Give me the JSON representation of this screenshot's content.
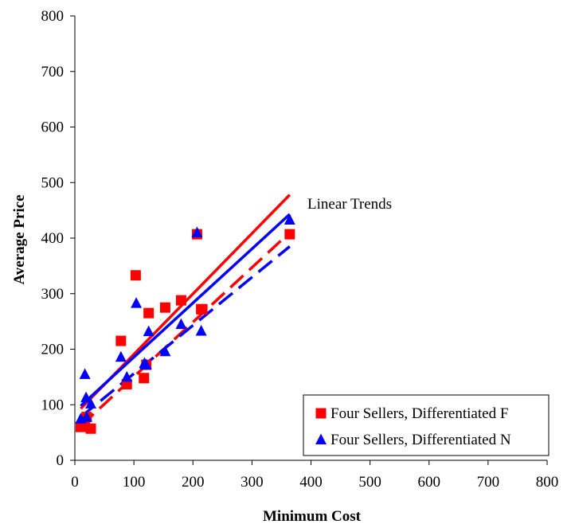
{
  "chart_data": {
    "type": "scatter",
    "title": "",
    "xlabel": "Minimum Cost",
    "ylabel": "Average Price",
    "xlim": [
      0,
      800
    ],
    "ylim": [
      0,
      800
    ],
    "xticks": [
      0,
      100,
      200,
      300,
      400,
      500,
      600,
      700,
      800
    ],
    "yticks": [
      0,
      100,
      200,
      300,
      400,
      500,
      600,
      700,
      800
    ],
    "grid": false,
    "legend_position": "bottom-right",
    "annotation": "Linear Trends",
    "series": [
      {
        "name": "Four Sellers, Differentiated F",
        "marker": "square",
        "color": "#ff0000",
        "points": [
          [
            10,
            60
          ],
          [
            17,
            68
          ],
          [
            20,
            78
          ],
          [
            27,
            57
          ],
          [
            78,
            215
          ],
          [
            88,
            137
          ],
          [
            103,
            333
          ],
          [
            117,
            148
          ],
          [
            121,
            172
          ],
          [
            125,
            265
          ],
          [
            153,
            275
          ],
          [
            180,
            288
          ],
          [
            207,
            407
          ],
          [
            214,
            272
          ],
          [
            216,
            272
          ],
          [
            364,
            407
          ]
        ]
      },
      {
        "name": "Four Sellers, Differentiated N",
        "marker": "triangle",
        "color": "#0000ff",
        "points": [
          [
            10,
            75
          ],
          [
            17,
            155
          ],
          [
            19,
            113
          ],
          [
            20,
            78
          ],
          [
            27,
            102
          ],
          [
            78,
            186
          ],
          [
            88,
            150
          ],
          [
            104,
            283
          ],
          [
            118,
            175
          ],
          [
            121,
            172
          ],
          [
            125,
            232
          ],
          [
            153,
            196
          ],
          [
            180,
            245
          ],
          [
            207,
            410
          ],
          [
            214,
            233
          ],
          [
            364,
            433
          ]
        ]
      }
    ],
    "trend_lines": [
      {
        "series": "Four Sellers, Differentiated F",
        "style": "solid",
        "color": "#ff0000",
        "x": [
          10,
          364
        ],
        "y": [
          93,
          478
        ]
      },
      {
        "series": "Four Sellers, Differentiated N",
        "style": "solid",
        "color": "#0000ff",
        "x": [
          10,
          364
        ],
        "y": [
          98,
          443
        ]
      },
      {
        "series": "Four Sellers, Differentiated F",
        "style": "dashed",
        "color": "#ff0000",
        "x": [
          10,
          364
        ],
        "y": [
          62,
          410
        ]
      },
      {
        "series": "Four Sellers, Differentiated N",
        "style": "dashed",
        "color": "#0000ff",
        "x": [
          10,
          364
        ],
        "y": [
          78,
          385
        ]
      }
    ]
  }
}
